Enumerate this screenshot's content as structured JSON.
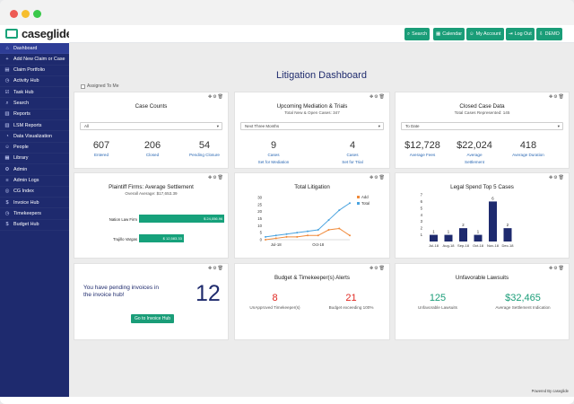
{
  "app": {
    "logo_text": "caseglide"
  },
  "sidebar": {
    "items": [
      {
        "label": "Dashboard",
        "icon": "⌂"
      },
      {
        "label": "Add New Claim or Case",
        "icon": "+"
      },
      {
        "label": "Claim Portfolio",
        "icon": "▤"
      },
      {
        "label": "Activity Hub",
        "icon": "◷"
      },
      {
        "label": "Task Hub",
        "icon": "☑"
      },
      {
        "label": "Search",
        "icon": "⌕"
      },
      {
        "label": "Reports",
        "icon": "▥"
      },
      {
        "label": "LSM Reports",
        "icon": "▥"
      },
      {
        "label": "Data Visualization",
        "icon": "◔"
      },
      {
        "label": "People",
        "icon": "☺"
      },
      {
        "label": "Library",
        "icon": "▦"
      },
      {
        "label": "Admin",
        "icon": "⚙"
      },
      {
        "label": "Admin Logs",
        "icon": "≡"
      },
      {
        "label": "CG Index",
        "icon": "◎"
      },
      {
        "label": "Invoice Hub",
        "icon": "$"
      },
      {
        "label": "Timekeepers",
        "icon": "◷"
      },
      {
        "label": "Budget Hub",
        "icon": "$"
      }
    ]
  },
  "topbar": {
    "buttons": [
      {
        "label": "Search",
        "icon": "⌕"
      },
      {
        "label": "Calendar",
        "icon": "▦"
      },
      {
        "label": "My Account",
        "icon": "☺"
      },
      {
        "label": "Log Out",
        "icon": "⇥"
      },
      {
        "label": "DEMO",
        "icon": "⇩"
      }
    ]
  },
  "page": {
    "title": "Litigation Dashboard",
    "assigned_label": "Assigned To Me"
  },
  "card_tools": "✥⚙🗑",
  "case_counts": {
    "title": "Case Counts",
    "select_value": "All",
    "stats": [
      {
        "value": "607",
        "label": "Entered"
      },
      {
        "value": "206",
        "label": "Closed"
      },
      {
        "value": "54",
        "label": "Pending Closure"
      }
    ]
  },
  "mediation": {
    "title": "Upcoming Mediation & Trials",
    "subtitle": "Total New & Open Cases: 347",
    "select_value": "Next Three Months",
    "stats": [
      {
        "value": "9",
        "label_top": "Cases",
        "label_bottom": "Set for Mediation"
      },
      {
        "value": "4",
        "label_top": "Cases",
        "label_bottom": "Set for Trial"
      }
    ]
  },
  "closed_data": {
    "title": "Closed Case Data",
    "subtitle": "Total Cases Represented: 145",
    "select_value": "To Date",
    "stats": [
      {
        "value": "$12,728",
        "label": "Average Fees"
      },
      {
        "value": "$22,024",
        "label_top": "Average",
        "label_bottom": "Settlement"
      },
      {
        "value": "418",
        "label": "Average Duration"
      }
    ]
  },
  "plaintiff": {
    "title": "Plaintiff Firms: Average Settlement",
    "subtitle": "Overall Average: $17,653.39"
  },
  "litigation_chart_title": "Total Litigation",
  "legal_spend_title": "Legal Spend Top 5 Cases",
  "chart_data": [
    {
      "type": "bar",
      "orientation": "horizontal",
      "categories": [
        "Nation Law Firm",
        "Trujillo Vargas"
      ],
      "values": [
        24056.96,
        12583.33
      ],
      "value_labels": [
        "$ 24,056.96",
        "$ 12,583.33"
      ],
      "xlim": [
        0,
        30000
      ]
    },
    {
      "type": "line",
      "title": "Total Litigation",
      "x_tick_labels": [
        "Jul-18",
        "Oct-18"
      ],
      "x": [
        1,
        2,
        3,
        4,
        5,
        6,
        7,
        8,
        9
      ],
      "ylim": [
        0,
        30
      ],
      "y_ticks": [
        0,
        5,
        10,
        15,
        20,
        25,
        30
      ],
      "legend": "right",
      "series": [
        {
          "name": "Add",
          "color": "#f08a3a",
          "values": [
            0,
            1,
            2,
            2,
            3,
            3,
            7,
            8,
            3
          ]
        },
        {
          "name": "Total",
          "color": "#4aa3df",
          "values": [
            2,
            3,
            4,
            5,
            6,
            7,
            14,
            21,
            26
          ]
        }
      ]
    },
    {
      "type": "bar",
      "title": "Legal Spend Top 5 Cases",
      "categories": [
        "Jul-18",
        "Aug-18",
        "Sep-18",
        "Oct-18",
        "Nov-18",
        "Dec-18"
      ],
      "values": [
        1,
        1,
        2,
        1,
        6,
        2
      ],
      "ylim": [
        0,
        7
      ],
      "y_ticks": [
        1,
        2,
        3,
        4,
        5,
        6,
        7
      ],
      "color": "#1e2a6e"
    }
  ],
  "pending": {
    "text": "You have pending invoices in the invoice hub!",
    "count": "12",
    "button": "Go to Invoice Hub"
  },
  "budget": {
    "title": "Budget & Timekeeper(s) Alerts",
    "stats": [
      {
        "value": "8",
        "label": "UnApproved Timekeeper(s)"
      },
      {
        "value": "21",
        "label": "Budget exceeding 100%"
      }
    ]
  },
  "unfavorable": {
    "title": "Unfavorable Lawsuits",
    "stats": [
      {
        "value": "125",
        "label": "Unfavorable Lawsuits"
      },
      {
        "value": "$32,465",
        "label": "Average Settlement Indication"
      }
    ]
  },
  "footer": {
    "text": "Powered By caseglide"
  },
  "colors": {
    "accent": "#1a9d78",
    "navy": "#1e2a6e",
    "alert": "#e0261f",
    "link": "#2b68b3"
  }
}
